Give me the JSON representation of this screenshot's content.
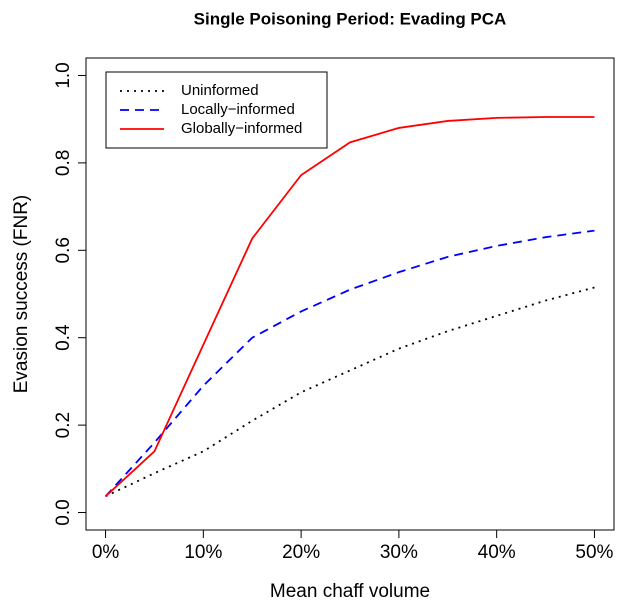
{
  "chart_data": {
    "type": "line",
    "title": "Single Poisoning Period: Evading PCA",
    "x_label": "Mean chaff volume",
    "y_label": "Evasion success (FNR)",
    "x": [
      0,
      5,
      10,
      15,
      20,
      25,
      30,
      35,
      40,
      45,
      50
    ],
    "series": [
      {
        "name": "Uninformed",
        "color": "#000000",
        "dash": "dotted",
        "values": [
          0.037,
          0.09,
          0.14,
          0.21,
          0.275,
          0.325,
          0.375,
          0.415,
          0.45,
          0.485,
          0.515
        ]
      },
      {
        "name": "Locally−informed",
        "color": "#0000ff",
        "dash": "dashed",
        "values": [
          0.037,
          0.16,
          0.29,
          0.4,
          0.46,
          0.51,
          0.55,
          0.585,
          0.61,
          0.63,
          0.645
        ]
      },
      {
        "name": "Globally−informed",
        "color": "#ff0000",
        "dash": "solid",
        "values": [
          0.037,
          0.14,
          0.384,
          0.627,
          0.772,
          0.847,
          0.88,
          0.896,
          0.903,
          0.905,
          0.905
        ]
      }
    ],
    "xlim": [
      -2,
      52
    ],
    "ylim": [
      -0.04,
      1.04
    ],
    "xticks": [
      {
        "value": 0,
        "label": "0%"
      },
      {
        "value": 10,
        "label": "10%"
      },
      {
        "value": 20,
        "label": "20%"
      },
      {
        "value": 30,
        "label": "30%"
      },
      {
        "value": 40,
        "label": "40%"
      },
      {
        "value": 50,
        "label": "50%"
      }
    ],
    "yticks": [
      {
        "value": 0,
        "label": "0.0"
      },
      0.2,
      0.4,
      0.6,
      0.8,
      {
        "value": 1,
        "label": "1.0"
      }
    ],
    "legend": "top-left"
  }
}
